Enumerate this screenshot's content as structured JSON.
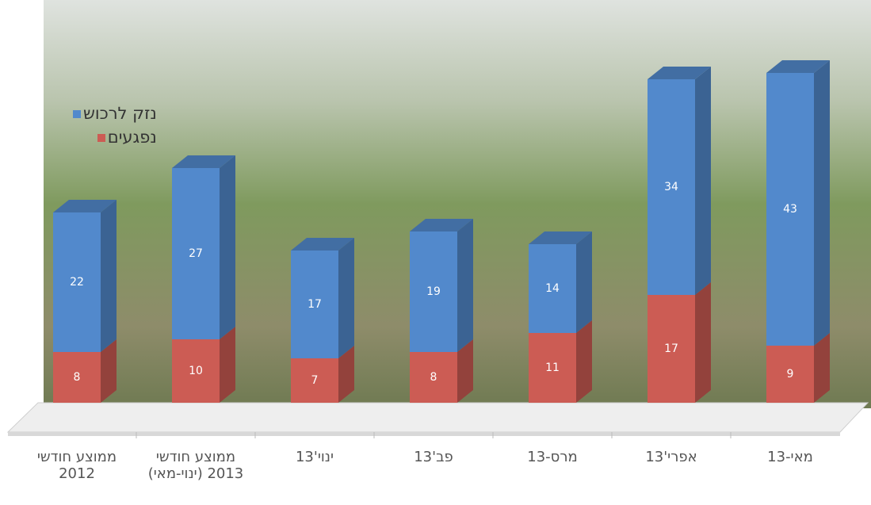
{
  "chart_data": {
    "type": "stacked-bar-3d",
    "categories": [
      "ממוצע חודשי 2012",
      "ממוצע חודשי 2013 (ינוי-מאי)",
      "ינוי'13",
      "פב'13",
      "מרס-13",
      "אפרי'13",
      "מאי-13"
    ],
    "series": [
      {
        "name": "נפגעים",
        "color": "#cc5c54",
        "values": [
          8,
          10,
          7,
          8,
          11,
          17,
          9
        ]
      },
      {
        "name": "נזק לרכוש",
        "color": "#5289cc",
        "values": [
          22,
          27,
          17,
          19,
          14,
          34,
          43
        ]
      }
    ],
    "legend": "top-left"
  }
}
